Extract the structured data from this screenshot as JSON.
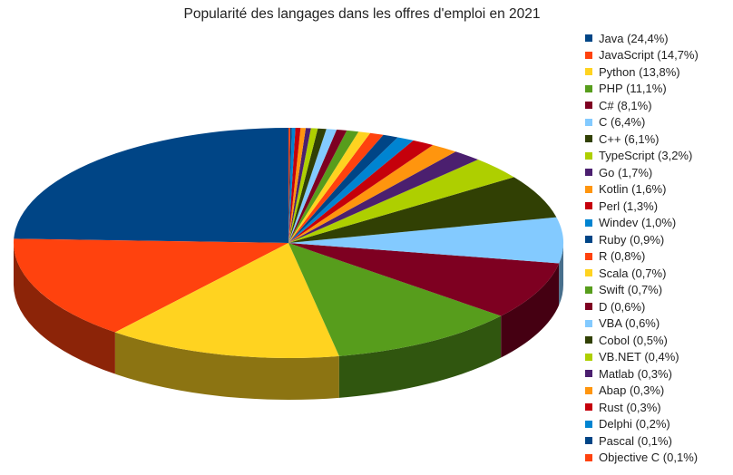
{
  "chart_data": {
    "type": "pie",
    "style": "3d",
    "title": "Popularité des langages dans les offres d'emploi en 2021",
    "legend_position": "right",
    "categories": [
      "Java",
      "JavaScript",
      "Python",
      "PHP",
      "C#",
      "C",
      "C++",
      "TypeScript",
      "Go",
      "Kotlin",
      "Perl",
      "Windev",
      "Ruby",
      "R",
      "Scala",
      "Swift",
      "D",
      "VBA",
      "Cobol",
      "VB.NET",
      "Matlab",
      "Abap",
      "Rust",
      "Delphi",
      "Pascal",
      "Objective C"
    ],
    "values": [
      24.4,
      14.7,
      13.8,
      11.1,
      8.1,
      6.4,
      6.1,
      3.2,
      1.7,
      1.6,
      1.3,
      1.0,
      0.9,
      0.8,
      0.7,
      0.7,
      0.6,
      0.6,
      0.5,
      0.4,
      0.3,
      0.3,
      0.3,
      0.2,
      0.1,
      0.1
    ],
    "labels": [
      "Java (24,4%)",
      "JavaScript (14,7%)",
      "Python (13,8%)",
      "PHP (11,1%)",
      "C# (8,1%)",
      "C (6,4%)",
      "C++ (6,1%)",
      "TypeScript (3,2%)",
      "Go (1,7%)",
      "Kotlin (1,6%)",
      "Perl (1,3%)",
      "Windev (1,0%)",
      "Ruby (0,9%)",
      "R (0,8%)",
      "Scala (0,7%)",
      "Swift (0,7%)",
      "D (0,6%)",
      "VBA (0,6%)",
      "Cobol (0,5%)",
      "VB.NET (0,4%)",
      "Matlab (0,3%)",
      "Abap (0,3%)",
      "Rust (0,3%)",
      "Delphi (0,2%)",
      "Pascal (0,1%)",
      "Objective C (0,1%)"
    ],
    "colors": [
      "#004586",
      "#ff420e",
      "#ffd320",
      "#579d1c",
      "#7e0021",
      "#83caff",
      "#314004",
      "#aecf00",
      "#4b1f6f",
      "#ff950e",
      "#c5000b",
      "#0084d1",
      "#004586",
      "#ff420e",
      "#ffd320",
      "#579d1c",
      "#7e0021",
      "#83caff",
      "#314004",
      "#aecf00",
      "#4b1f6f",
      "#ff950e",
      "#c5000b",
      "#0084d1",
      "#004586",
      "#ff420e"
    ]
  }
}
